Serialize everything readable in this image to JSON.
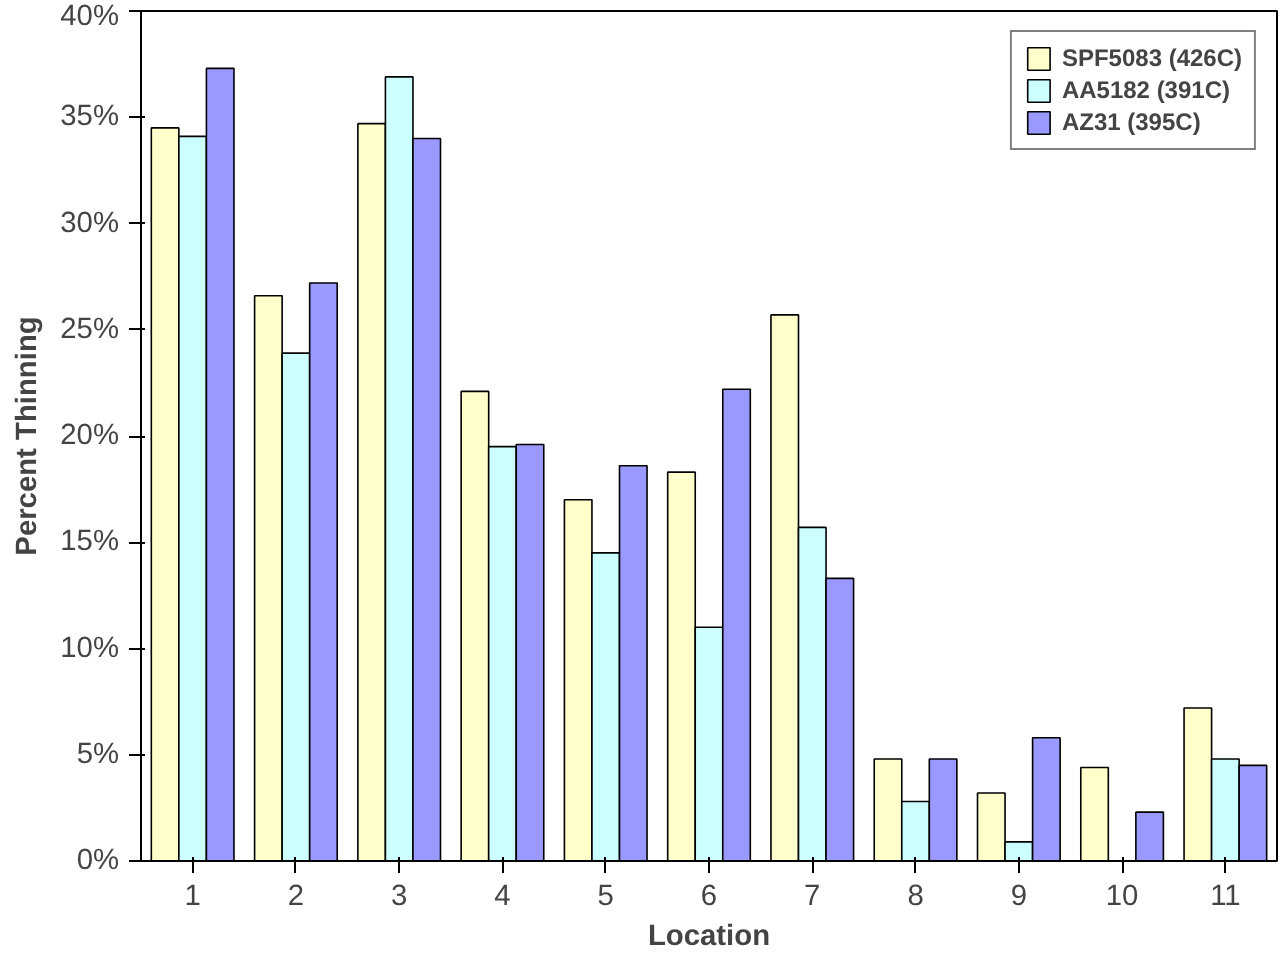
{
  "chart_data": {
    "type": "bar",
    "xlabel": "Location",
    "ylabel": "Percent Thinning",
    "categories": [
      "1",
      "2",
      "3",
      "4",
      "5",
      "6",
      "7",
      "8",
      "9",
      "10",
      "11"
    ],
    "series": [
      {
        "name": "SPF5083 (426C)",
        "color": "#ffffcc",
        "values": [
          34.5,
          26.6,
          34.7,
          22.1,
          17.0,
          18.3,
          25.7,
          4.8,
          3.2,
          4.4,
          7.2
        ]
      },
      {
        "name": "AA5182 (391C)",
        "color": "#ccffff",
        "values": [
          34.1,
          23.9,
          36.9,
          19.5,
          14.5,
          11.0,
          15.7,
          2.8,
          0.9,
          null,
          4.8
        ]
      },
      {
        "name": "AZ31 (395C)",
        "color": "#9999ff",
        "values": [
          37.3,
          27.2,
          34.0,
          19.6,
          18.6,
          22.2,
          13.3,
          4.8,
          5.8,
          2.3,
          4.5
        ]
      }
    ],
    "ylim": [
      0,
      40
    ],
    "yticks": [
      {
        "value": 0,
        "label": "0%"
      },
      {
        "value": 5,
        "label": "5%"
      },
      {
        "value": 10,
        "label": "10%"
      },
      {
        "value": 15,
        "label": "15%"
      },
      {
        "value": 20,
        "label": "20%"
      },
      {
        "value": 25,
        "label": "25%"
      },
      {
        "value": 30,
        "label": "30%"
      },
      {
        "value": 35,
        "label": "35%"
      },
      {
        "value": 40,
        "label": "40%"
      }
    ],
    "grid": false,
    "legend": "top right"
  }
}
